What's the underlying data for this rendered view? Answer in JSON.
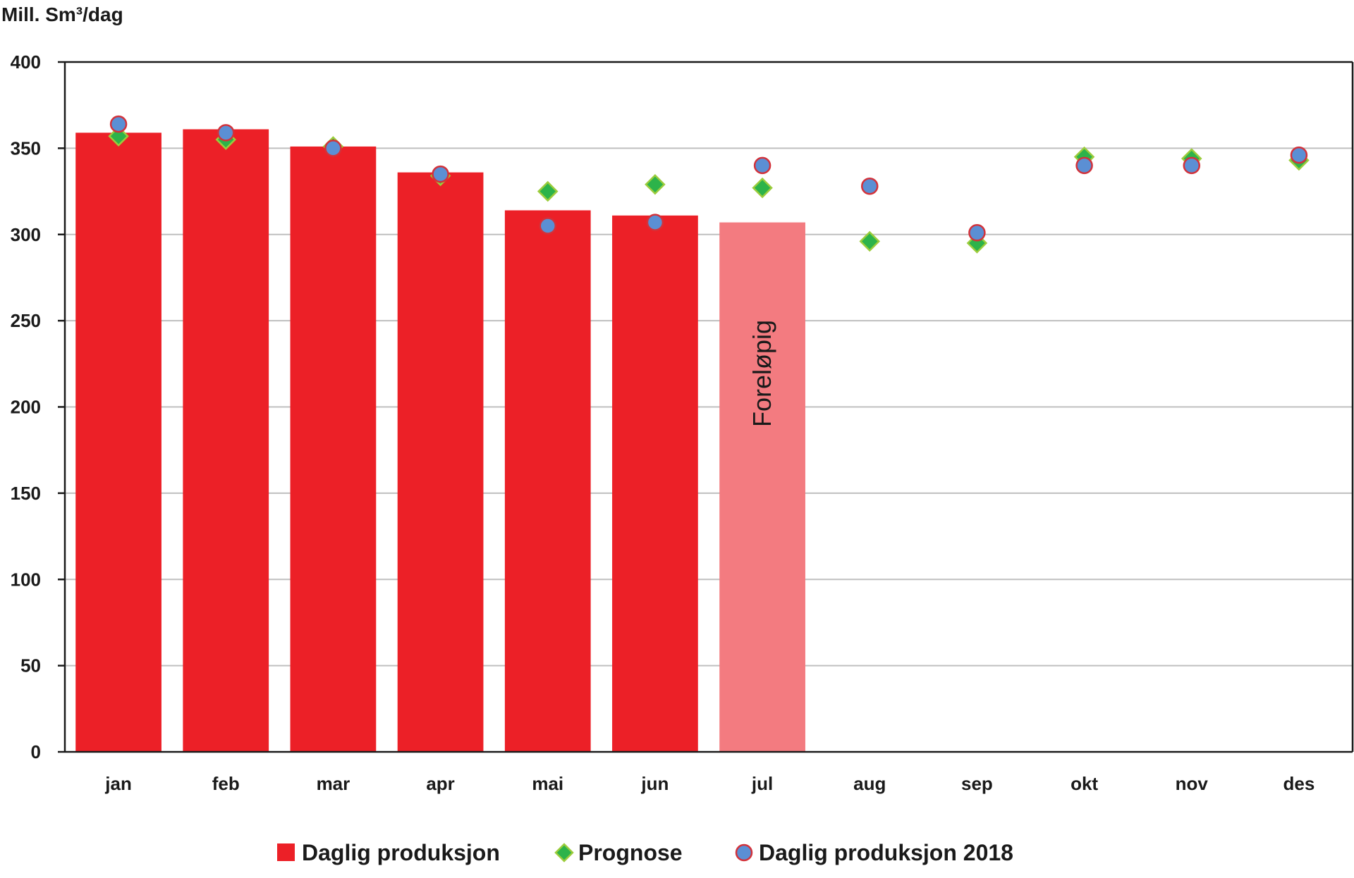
{
  "chart_data": {
    "type": "bar",
    "ylabel": "Mill. Sm³/dag",
    "ylim": [
      0,
      400
    ],
    "yticks": [
      0,
      50,
      100,
      150,
      200,
      250,
      300,
      350,
      400
    ],
    "categories": [
      "jan",
      "feb",
      "mar",
      "apr",
      "mai",
      "jun",
      "jul",
      "aug",
      "sep",
      "okt",
      "nov",
      "des"
    ],
    "grid": true,
    "legend_position": "bottom",
    "series": [
      {
        "name": "Daglig produksjon",
        "kind": "bar",
        "color": "#ec2027",
        "preliminary_color": "#f37b80",
        "values": [
          359,
          361,
          351,
          336,
          314,
          311,
          307,
          null,
          null,
          null,
          null,
          null
        ],
        "preliminary_index": 6,
        "preliminary_label": "Foreløpig"
      },
      {
        "name": "Prognose",
        "kind": "scatter",
        "marker": "diamond",
        "color": "#2db34a",
        "edge_color": "#9ccc3c",
        "values": [
          357,
          355,
          351,
          334,
          325,
          329,
          327,
          296,
          295,
          345,
          344,
          343
        ]
      },
      {
        "name": "Daglig produksjon 2018",
        "kind": "scatter",
        "marker": "circle",
        "color": "#5b8fd4",
        "edge_color": "#d3323a",
        "values": [
          364,
          359,
          350,
          335,
          305,
          307,
          340,
          328,
          301,
          340,
          340,
          346
        ]
      }
    ]
  }
}
